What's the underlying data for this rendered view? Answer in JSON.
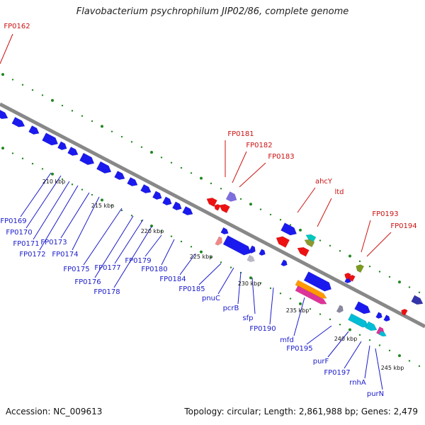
{
  "title": "Flavobacterium psychrophilum JIP02/86, complete genome",
  "accession": "Accession: NC_009613",
  "summary": "Topology: circular; Length: 2,861,988 bp; Genes: 2,479",
  "colors": {
    "forward_gene": "#1a1aee",
    "reverse_gene": "#ee1111",
    "forward_label": "#1a1acc",
    "reverse_label": "#cc1111",
    "axis": "#888888",
    "ticks": "#228822"
  },
  "kbp_ticks": [
    "210 kbp",
    "215 kbp",
    "220 kbp",
    "225 kbp",
    "230 kbp",
    "235 kbp",
    "240 kbp",
    "245 kbp"
  ],
  "forward_labels": [
    "FP0169",
    "FP0170",
    "FP0171",
    "FP0172",
    "FP0173",
    "FP0174",
    "FP0175",
    "FP0176",
    "FP0177",
    "FP0178",
    "FP0179",
    "FP0180",
    "FP0184",
    "FP0185",
    "pnuC",
    "pcrB",
    "sfp",
    "FP0190",
    "mfd",
    "FP0195",
    "purF",
    "FP0197",
    "rnhA",
    "purN"
  ],
  "reverse_labels": [
    "FP0162",
    "FP0181",
    "FP0182",
    "FP0183",
    "ahcY",
    "ltd",
    "FP0193",
    "FP0194"
  ]
}
